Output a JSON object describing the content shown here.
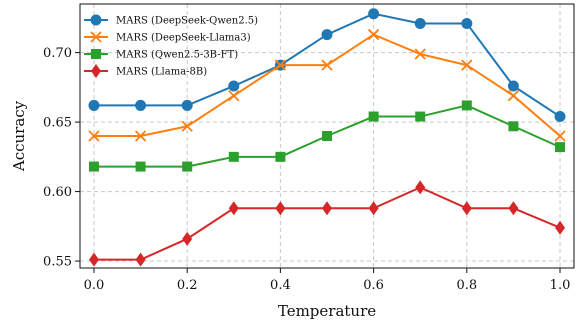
{
  "chart_data": {
    "type": "line",
    "xlabel": "Temperature",
    "ylabel": "Accuracy",
    "x": [
      0.0,
      0.1,
      0.2,
      0.3,
      0.4,
      0.5,
      0.6,
      0.7,
      0.8,
      0.9,
      1.0
    ],
    "xlim": [
      -0.03,
      1.03
    ],
    "ylim": [
      0.545,
      0.735
    ],
    "xticks": [
      0.0,
      0.2,
      0.4,
      0.6,
      0.8,
      1.0
    ],
    "xtick_labels": [
      "0.0",
      "0.2",
      "0.4",
      "0.6",
      "0.8",
      "1.0"
    ],
    "yticks": [
      0.55,
      0.6,
      0.65,
      0.7
    ],
    "ytick_labels": [
      "0.55",
      "0.60",
      "0.65",
      "0.70"
    ],
    "grid": true,
    "legend_position": "top-left",
    "series": [
      {
        "name": "MARS (DeepSeek-Qwen2.5)",
        "color": "#1f77b4",
        "marker": "circle",
        "values": [
          0.662,
          0.662,
          0.662,
          0.676,
          0.691,
          0.713,
          0.728,
          0.721,
          0.721,
          0.676,
          0.654
        ]
      },
      {
        "name": "MARS (DeepSeek-Llama3)",
        "color": "#ff7f0e",
        "marker": "x",
        "values": [
          0.64,
          0.64,
          0.647,
          0.669,
          0.691,
          0.691,
          0.713,
          0.699,
          0.691,
          0.669,
          0.64
        ]
      },
      {
        "name": "MARS (Qwen2.5-3B-FT)",
        "color": "#2ca02c",
        "marker": "square",
        "values": [
          0.618,
          0.618,
          0.618,
          0.625,
          0.625,
          0.64,
          0.654,
          0.654,
          0.662,
          0.647,
          0.632
        ]
      },
      {
        "name": "MARS (Llama-8B)",
        "color": "#d62728",
        "marker": "diamond",
        "values": [
          0.551,
          0.551,
          0.566,
          0.588,
          0.588,
          0.588,
          0.588,
          0.603,
          0.588,
          0.588,
          0.574
        ]
      }
    ]
  }
}
